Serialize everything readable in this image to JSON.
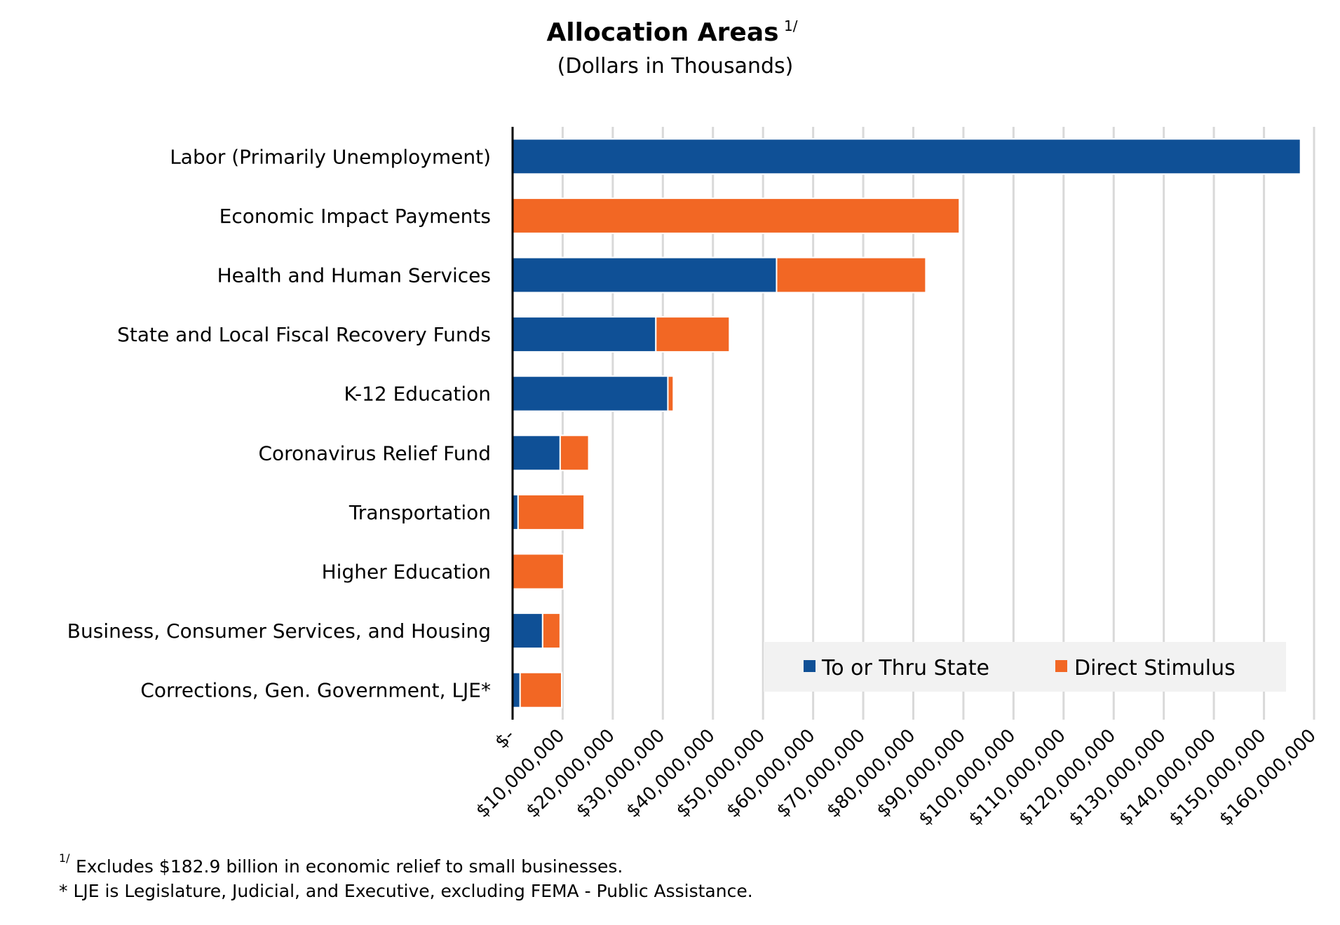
{
  "chart_data": {
    "type": "bar",
    "orientation": "horizontal",
    "stacked": true,
    "title": "Allocation Areas",
    "title_footnote_marker": "1/",
    "subtitle": "(Dollars in Thousands)",
    "categories": [
      "Labor (Primarily Unemployment)",
      "Economic Impact Payments",
      "Health and Human Services",
      "State and Local Fiscal Recovery Funds",
      "K-12 Education",
      "Coronavirus Relief Fund",
      "Transportation",
      "Higher Education",
      "Business, Consumer Services, and Housing",
      "Corrections, Gen. Government, LJE*"
    ],
    "series": [
      {
        "name": "To or Thru State",
        "color": "#0f5096",
        "values": [
          157300000,
          0,
          52700000,
          28600000,
          31000000,
          9500000,
          1100000,
          0,
          6000000,
          1500000
        ]
      },
      {
        "name": "Direct Stimulus",
        "color": "#f26724",
        "values": [
          0,
          89200000,
          29800000,
          14700000,
          1100000,
          5700000,
          13200000,
          10200000,
          3500000,
          8300000
        ]
      }
    ],
    "xlim": [
      0,
      160000000
    ],
    "x_ticks": [
      0,
      10000000,
      20000000,
      30000000,
      40000000,
      50000000,
      60000000,
      70000000,
      80000000,
      90000000,
      100000000,
      110000000,
      120000000,
      130000000,
      140000000,
      150000000,
      160000000
    ],
    "x_tick_labels": [
      "$-",
      "$10,000,000",
      "$20,000,000",
      "$30,000,000",
      "$40,000,000",
      "$50,000,000",
      "$60,000,000",
      "$70,000,000",
      "$80,000,000",
      "$90,000,000",
      "$100,000,000",
      "$110,000,000",
      "$120,000,000",
      "$130,000,000",
      "$140,000,000",
      "$150,000,000",
      "$160,000,000"
    ],
    "grid": "vertical",
    "gridline_color": "#d9d9d9",
    "legend_placement": "bottom-right",
    "legend_background": "#f2f2f2"
  },
  "footnotes": {
    "note1_marker": "1/",
    "note1": "Excludes $182.9 billion in economic relief to small businesses.",
    "note2": "*  LJE is Legislature, Judicial, and Executive, excluding FEMA - Public Assistance."
  }
}
